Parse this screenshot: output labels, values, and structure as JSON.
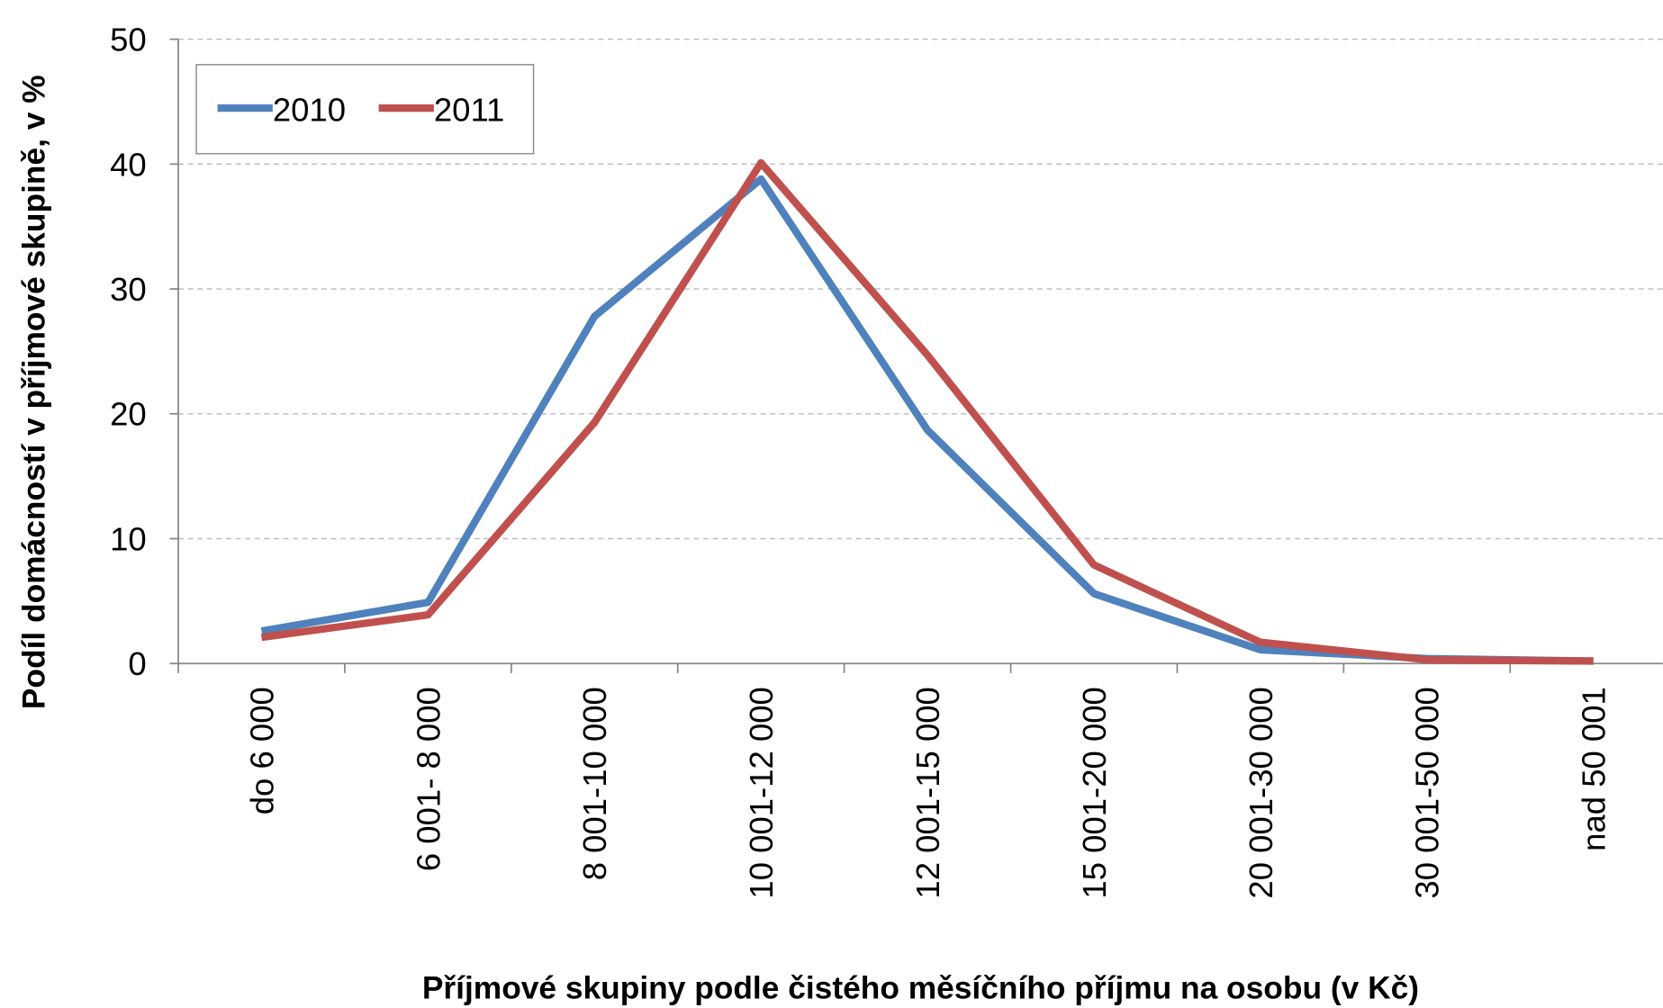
{
  "chart_data": {
    "type": "line",
    "x_label": "Příjmové skupiny podle čistého měsíčního příjmu na osobu (v Kč)",
    "y_label": "Podíl domácností v příjmové skupině, v %",
    "categories": [
      "do 6 000",
      "6 001- 8 000",
      "8 001-10 000",
      "10 001-12 000",
      "12 001-15 000",
      "15 001-20 000",
      "20 001-30 000",
      "30 001-50 000",
      "nad 50 001"
    ],
    "series": [
      {
        "name": "2010",
        "color": "#4f81bd",
        "values": [
          2.6,
          4.9,
          27.8,
          38.8,
          18.7,
          5.6,
          1.1,
          0.4,
          0.2
        ]
      },
      {
        "name": "2011",
        "color": "#c0504d",
        "values": [
          2.1,
          3.9,
          19.3,
          40.1,
          24.7,
          7.9,
          1.7,
          0.3,
          0.2
        ]
      }
    ],
    "ylim": [
      0,
      50
    ],
    "yticks": [
      0,
      10,
      20,
      30,
      40,
      50
    ],
    "grid": true,
    "legend": "upper left"
  }
}
